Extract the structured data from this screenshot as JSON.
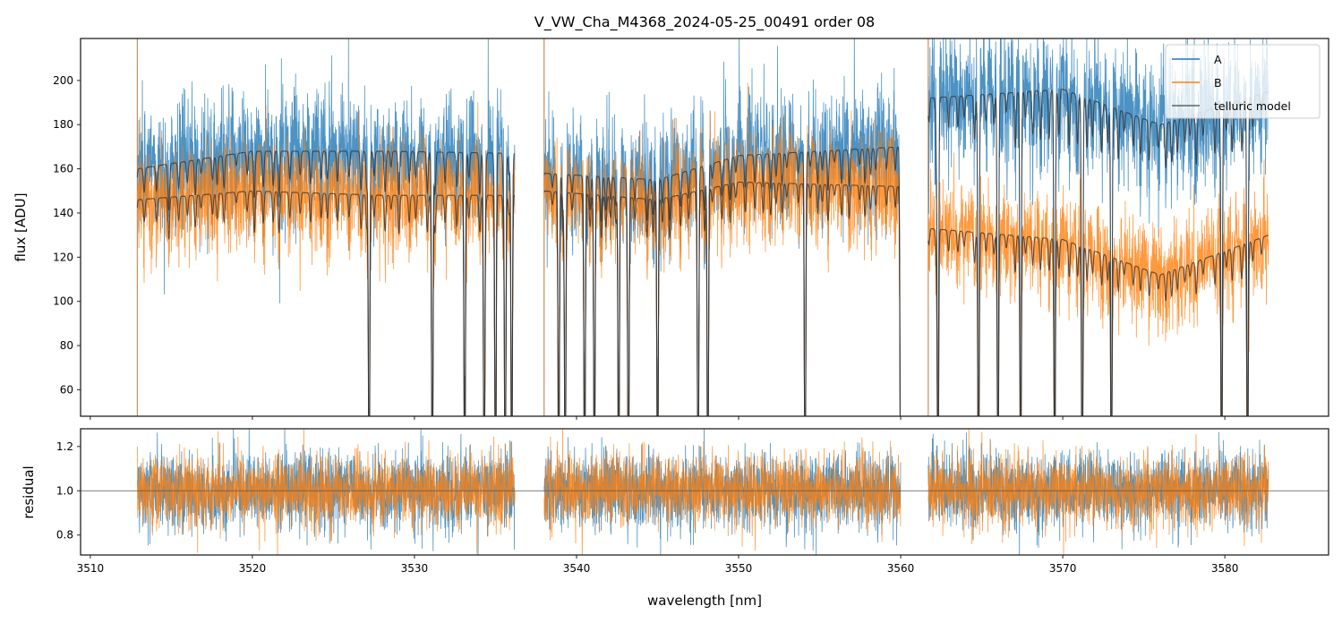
{
  "chart_data": [
    {
      "panel": "flux",
      "type": "line",
      "title": "V_VW_Cha_M4368_2024-05-25_00491  order 08",
      "xlabel": "",
      "ylabel": "flux [ADU]",
      "xlim": [
        3509.4,
        3586.4
      ],
      "ylim": [
        48,
        219
      ],
      "xticks": [
        3510,
        3520,
        3530,
        3540,
        3550,
        3560,
        3570,
        3580
      ],
      "xtick_labels_shown": false,
      "yticks": [
        60,
        80,
        100,
        120,
        140,
        160,
        180,
        200
      ],
      "ytick_labels": [
        "60",
        "80",
        "100",
        "120",
        "140",
        "160",
        "180",
        "200"
      ],
      "grid": false,
      "legend": {
        "placement": "top-right",
        "entries": [
          {
            "label": "A",
            "color": "#1f77b4"
          },
          {
            "label": "B",
            "color": "#ff7f0e"
          },
          {
            "label": "telluric model",
            "color": "#333333"
          }
        ]
      },
      "segments_nm": [
        [
          3512.9,
          3536.2
        ],
        [
          3538.0,
          3560.0
        ],
        [
          3561.7,
          3582.7
        ]
      ],
      "series": [
        {
          "name": "A",
          "color": "#1f77b4",
          "continuum_by_segment": [
            {
              "x": [
                3512.9,
                3520,
                3528,
                3536.2
              ],
              "y": [
                160,
                168,
                168,
                167
              ]
            },
            {
              "x": [
                3538.0,
                3545,
                3550,
                3560.0
              ],
              "y": [
                158,
                155,
                166,
                170
              ]
            },
            {
              "x": [
                3561.7,
                3570,
                3576,
                3582.7
              ],
              "y": [
                192,
                196,
                180,
                195
              ]
            }
          ],
          "noise_sigma_adu": 14
        },
        {
          "name": "B",
          "color": "#ff7f0e",
          "continuum_by_segment": [
            {
              "x": [
                3512.9,
                3520,
                3528,
                3536.2
              ],
              "y": [
                146,
                150,
                148,
                148
              ]
            },
            {
              "x": [
                3538.0,
                3545,
                3550,
                3560.0
              ],
              "y": [
                150,
                146,
                154,
                152
              ]
            },
            {
              "x": [
                3561.7,
                3570,
                3576,
                3582.7
              ],
              "y": [
                133,
                128,
                112,
                130
              ]
            }
          ],
          "noise_sigma_adu": 11
        },
        {
          "name": "telluric model",
          "color": "#333333",
          "description": "continuum of A and of B multiplied by telluric transmission"
        }
      ],
      "strong_absorption_lines_nm": [
        3527.2,
        3531.1,
        3533.1,
        3534.3,
        3535.0,
        3535.6,
        3536.0,
        3538.9,
        3539.3,
        3540.5,
        3541.1,
        3542.6,
        3543.2,
        3545.0,
        3547.5,
        3548.1,
        3554.1,
        3560.0,
        3562.3,
        3564.8,
        3566.0,
        3567.4,
        3569.5,
        3571.2,
        3573.0,
        3579.8,
        3581.4
      ]
    },
    {
      "panel": "residual",
      "type": "line",
      "title": "",
      "xlabel": "wavelength [nm]",
      "ylabel": "residual",
      "xlim": [
        3509.4,
        3586.4
      ],
      "ylim": [
        0.71,
        1.28
      ],
      "xticks": [
        3510,
        3520,
        3530,
        3540,
        3550,
        3560,
        3570,
        3580
      ],
      "xtick_labels": [
        "3510",
        "3520",
        "3530",
        "3540",
        "3550",
        "3560",
        "3570",
        "3580"
      ],
      "yticks": [
        0.8,
        1.0,
        1.2
      ],
      "ytick_labels": [
        "0.8",
        "1.0",
        "1.2"
      ],
      "reference_line_y": 1.0,
      "grid": false,
      "series": [
        {
          "name": "A",
          "color": "#1f77b4",
          "center": 1.0,
          "noise_sigma": 0.085
        },
        {
          "name": "B",
          "color": "#ff7f0e",
          "center": 1.0,
          "noise_sigma": 0.08
        }
      ]
    }
  ]
}
